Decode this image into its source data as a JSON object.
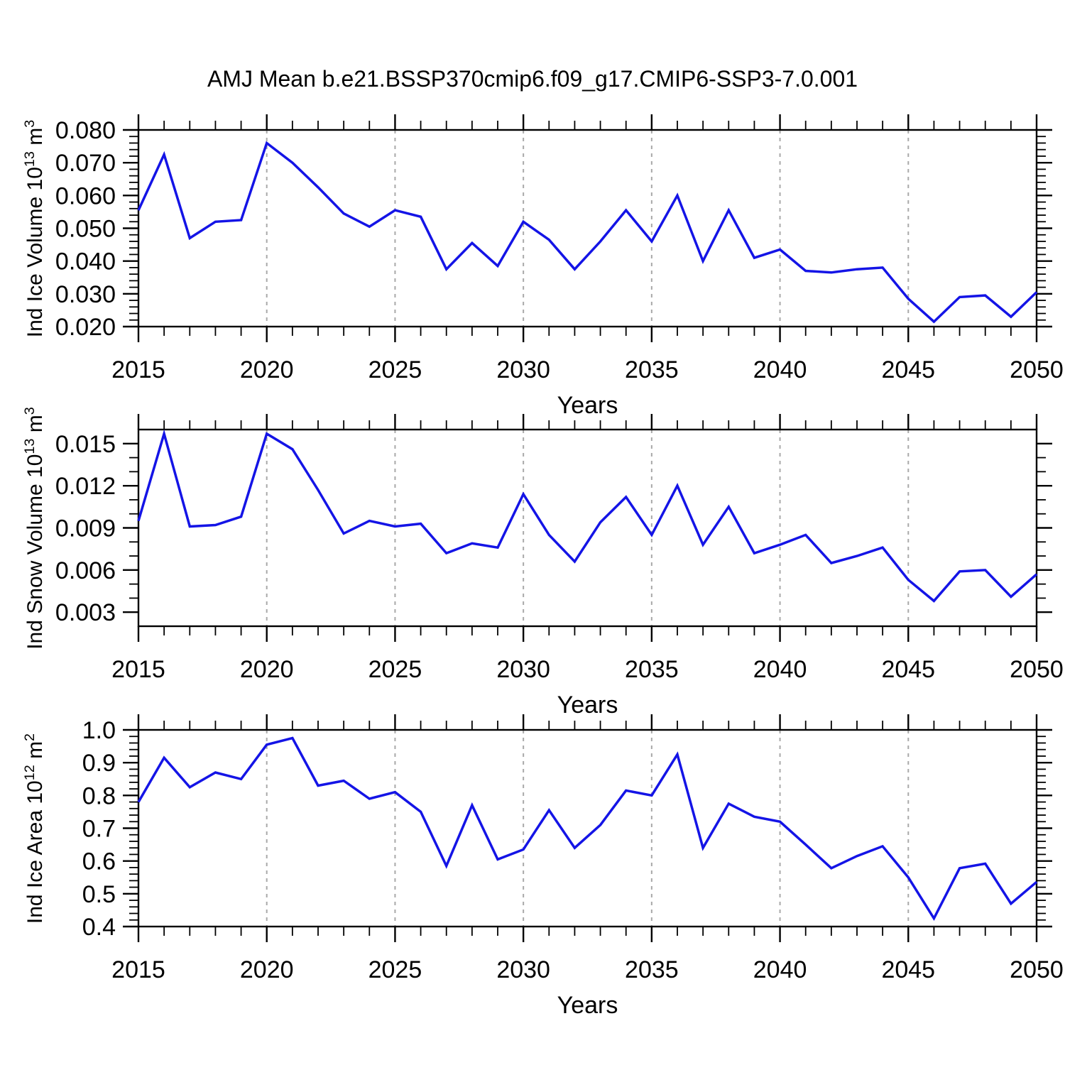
{
  "title": "AMJ Mean b.e21.BSSP370cmip6.f09_g17.CMIP6-SSP3-7.0.001",
  "colors": {
    "line": "#1414E6",
    "grid": "#A9A9A9",
    "axis": "#000000",
    "text": "#000000",
    "background": "#FFFFFF"
  },
  "x_axis": {
    "label": "Years",
    "range": [
      2015,
      2050
    ],
    "years": [
      2015,
      2016,
      2017,
      2018,
      2019,
      2020,
      2021,
      2022,
      2023,
      2024,
      2025,
      2026,
      2027,
      2028,
      2029,
      2030,
      2031,
      2032,
      2033,
      2034,
      2035,
      2036,
      2037,
      2038,
      2039,
      2040,
      2041,
      2042,
      2043,
      2044,
      2045,
      2046,
      2047,
      2048,
      2049,
      2050
    ],
    "tick_values": [
      2015,
      2020,
      2025,
      2030,
      2035,
      2040,
      2045,
      2050
    ],
    "tick_labels": [
      "2015",
      "2020",
      "2025",
      "2030",
      "2035",
      "2040",
      "2045",
      "2050"
    ],
    "minor_step": 1,
    "gridline_years": [
      2020,
      2025,
      2030,
      2035,
      2040,
      2045
    ]
  },
  "chart_data": [
    {
      "type": "line",
      "name": "ice-volume",
      "ylabel_text": "Ind Ice Volume 10^13 m^3",
      "ylabel_parts": [
        [
          "t",
          "Ind Ice Volume 10"
        ],
        [
          "s",
          "13"
        ],
        [
          "t",
          " m"
        ],
        [
          "s",
          "3"
        ]
      ],
      "xlabel": "Years",
      "x_ref": "x_axis.years",
      "values": [
        0.0555,
        0.0725,
        0.047,
        0.052,
        0.0525,
        0.076,
        0.07,
        0.0625,
        0.0545,
        0.0505,
        0.0555,
        0.0535,
        0.0375,
        0.0455,
        0.0385,
        0.052,
        0.0465,
        0.0375,
        0.046,
        0.0555,
        0.046,
        0.06,
        0.04,
        0.0555,
        0.041,
        0.0435,
        0.037,
        0.0365,
        0.0375,
        0.038,
        0.0285,
        0.0215,
        0.029,
        0.0295,
        0.023,
        0.0305
      ],
      "ylim": [
        0.02,
        0.08
      ],
      "ytick_values": [
        0.02,
        0.03,
        0.04,
        0.05,
        0.06,
        0.07,
        0.08
      ],
      "ytick_labels": [
        "0.020",
        "0.030",
        "0.040",
        "0.050",
        "0.060",
        "0.070",
        "0.080"
      ],
      "y_minor_step": 0.002,
      "grid": "vertical-dashed"
    },
    {
      "type": "line",
      "name": "snow-volume",
      "ylabel_text": "Ind Snow Volume 10^13 m^3",
      "ylabel_parts": [
        [
          "t",
          "Ind Snow Volume 10"
        ],
        [
          "s",
          "13"
        ],
        [
          "t",
          " m"
        ],
        [
          "s",
          "3"
        ]
      ],
      "xlabel": "Years",
      "x_ref": "x_axis.years",
      "values": [
        0.0095,
        0.0157,
        0.0091,
        0.0092,
        0.0098,
        0.0157,
        0.0146,
        0.0117,
        0.0086,
        0.0095,
        0.0091,
        0.0093,
        0.0072,
        0.0079,
        0.0076,
        0.0114,
        0.0085,
        0.0066,
        0.0094,
        0.0112,
        0.0085,
        0.012,
        0.0078,
        0.0105,
        0.0072,
        0.0078,
        0.0085,
        0.0065,
        0.007,
        0.0076,
        0.0053,
        0.0038,
        0.0059,
        0.006,
        0.0041,
        0.0057
      ],
      "ylim": [
        0.002,
        0.016
      ],
      "ytick_values": [
        0.003,
        0.006,
        0.009,
        0.012,
        0.015
      ],
      "ytick_labels": [
        "0.003",
        "0.006",
        "0.009",
        "0.012",
        "0.015"
      ],
      "y_minor_step": 0.001,
      "grid": "vertical-dashed"
    },
    {
      "type": "line",
      "name": "ice-area",
      "ylabel_text": "Ind Ice Area 10^12 m^2",
      "ylabel_parts": [
        [
          "t",
          "Ind Ice Area 10"
        ],
        [
          "s",
          "12"
        ],
        [
          "t",
          " m"
        ],
        [
          "s",
          "2"
        ]
      ],
      "xlabel": "Years",
      "x_ref": "x_axis.years",
      "values": [
        0.78,
        0.915,
        0.825,
        0.87,
        0.85,
        0.955,
        0.975,
        0.83,
        0.845,
        0.79,
        0.81,
        0.75,
        0.585,
        0.77,
        0.605,
        0.635,
        0.755,
        0.64,
        0.71,
        0.815,
        0.8,
        0.925,
        0.64,
        0.775,
        0.735,
        0.72,
        0.65,
        0.578,
        0.615,
        0.645,
        0.55,
        0.425,
        0.578,
        0.592,
        0.47,
        0.536
      ],
      "ylim": [
        0.4,
        1.0
      ],
      "ytick_values": [
        0.4,
        0.5,
        0.6,
        0.7,
        0.8,
        0.9,
        1.0
      ],
      "ytick_labels": [
        "0.4",
        "0.5",
        "0.6",
        "0.7",
        "0.8",
        "0.9",
        "1.0"
      ],
      "y_minor_step": 0.02,
      "grid": "vertical-dashed"
    }
  ]
}
